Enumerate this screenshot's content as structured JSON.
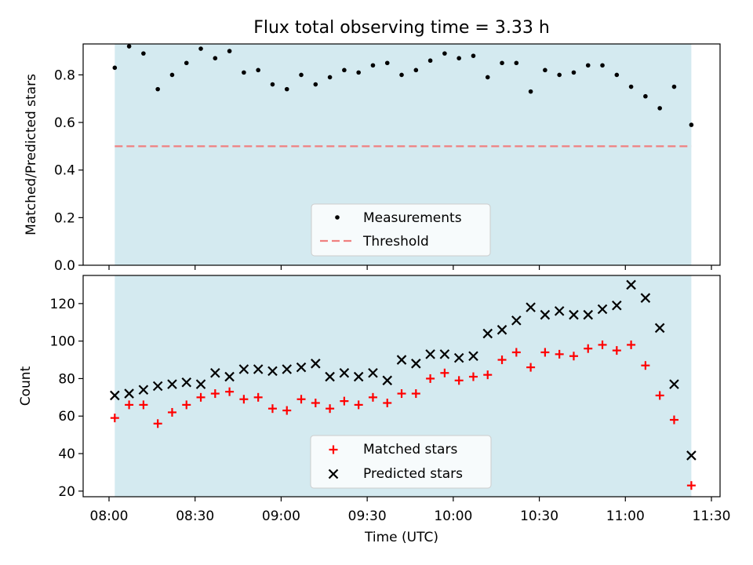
{
  "figure_title": "Flux total observing time = 3.33 h",
  "colors": {
    "shade": "#d4eaf0",
    "threshold": "#f08080",
    "matched": "#ff0000",
    "predicted": "#000000",
    "measurement": "#000000"
  },
  "chart_data": [
    {
      "type": "scatter",
      "title": "Flux total observing time = 3.33 h",
      "xlabel": "",
      "ylabel": "Matched/Predicted stars",
      "ylim": [
        0,
        0.93
      ],
      "yticks": [
        0.0,
        0.2,
        0.4,
        0.6,
        0.8
      ],
      "ytick_labels": [
        "0.0",
        "0.2",
        "0.4",
        "0.6",
        "0.8"
      ],
      "legend_position": "lower center",
      "shaded_time_span": [
        "08:02",
        "11:23"
      ],
      "series": [
        {
          "name": "Measurements",
          "marker": "dot",
          "x": [
            "08:02",
            "08:07",
            "08:12",
            "08:17",
            "08:22",
            "08:27",
            "08:32",
            "08:37",
            "08:42",
            "08:47",
            "08:52",
            "08:57",
            "09:02",
            "09:07",
            "09:12",
            "09:17",
            "09:22",
            "09:27",
            "09:32",
            "09:37",
            "09:42",
            "09:47",
            "09:52",
            "09:57",
            "10:02",
            "10:07",
            "10:12",
            "10:17",
            "10:22",
            "10:27",
            "10:32",
            "10:37",
            "10:42",
            "10:47",
            "10:52",
            "10:57",
            "11:02",
            "11:07",
            "11:12",
            "11:17",
            "11:23"
          ],
          "y": [
            0.83,
            0.92,
            0.89,
            0.74,
            0.8,
            0.85,
            0.91,
            0.87,
            0.9,
            0.81,
            0.82,
            0.76,
            0.74,
            0.8,
            0.76,
            0.79,
            0.82,
            0.81,
            0.84,
            0.85,
            0.8,
            0.82,
            0.86,
            0.89,
            0.87,
            0.88,
            0.79,
            0.85,
            0.85,
            0.73,
            0.82,
            0.8,
            0.81,
            0.84,
            0.84,
            0.8,
            0.75,
            0.71,
            0.66,
            0.75,
            0.59
          ]
        },
        {
          "name": "Threshold",
          "marker": "dashed-line",
          "x": [
            "08:02",
            "11:23"
          ],
          "y": [
            0.5,
            0.5
          ]
        }
      ]
    },
    {
      "type": "scatter",
      "title": "",
      "xlabel": "Time (UTC)",
      "ylabel": "Count",
      "ylim": [
        17,
        135
      ],
      "xlim": [
        "08:00",
        "11:30"
      ],
      "xticks": [
        "08:00",
        "08:30",
        "09:00",
        "09:30",
        "10:00",
        "10:30",
        "11:00",
        "11:30"
      ],
      "yticks": [
        20,
        40,
        60,
        80,
        100,
        120
      ],
      "ytick_labels": [
        "20",
        "40",
        "60",
        "80",
        "100",
        "120"
      ],
      "legend_position": "lower center",
      "shaded_time_span": [
        "08:02",
        "11:23"
      ],
      "series": [
        {
          "name": "Matched stars",
          "marker": "plus",
          "x": [
            "08:02",
            "08:07",
            "08:12",
            "08:17",
            "08:22",
            "08:27",
            "08:32",
            "08:37",
            "08:42",
            "08:47",
            "08:52",
            "08:57",
            "09:02",
            "09:07",
            "09:12",
            "09:17",
            "09:22",
            "09:27",
            "09:32",
            "09:37",
            "09:42",
            "09:47",
            "09:52",
            "09:57",
            "10:02",
            "10:07",
            "10:12",
            "10:17",
            "10:22",
            "10:27",
            "10:32",
            "10:37",
            "10:42",
            "10:47",
            "10:52",
            "10:57",
            "11:02",
            "11:07",
            "11:12",
            "11:17",
            "11:23"
          ],
          "y": [
            59,
            66,
            66,
            56,
            62,
            66,
            70,
            72,
            73,
            69,
            70,
            64,
            63,
            69,
            67,
            64,
            68,
            66,
            70,
            67,
            72,
            72,
            80,
            83,
            79,
            81,
            82,
            90,
            94,
            86,
            94,
            93,
            92,
            96,
            98,
            95,
            98,
            87,
            71,
            58,
            23
          ]
        },
        {
          "name": "Predicted stars",
          "marker": "x",
          "x": [
            "08:02",
            "08:07",
            "08:12",
            "08:17",
            "08:22",
            "08:27",
            "08:32",
            "08:37",
            "08:42",
            "08:47",
            "08:52",
            "08:57",
            "09:02",
            "09:07",
            "09:12",
            "09:17",
            "09:22",
            "09:27",
            "09:32",
            "09:37",
            "09:42",
            "09:47",
            "09:52",
            "09:57",
            "10:02",
            "10:07",
            "10:12",
            "10:17",
            "10:22",
            "10:27",
            "10:32",
            "10:37",
            "10:42",
            "10:47",
            "10:52",
            "10:57",
            "11:02",
            "11:07",
            "11:12",
            "11:17",
            "11:23"
          ],
          "y": [
            71,
            72,
            74,
            76,
            77,
            78,
            77,
            83,
            81,
            85,
            85,
            84,
            85,
            86,
            88,
            81,
            83,
            81,
            83,
            79,
            90,
            88,
            93,
            93,
            91,
            92,
            104,
            106,
            111,
            118,
            114,
            116,
            114,
            114,
            117,
            119,
            130,
            123,
            107,
            77,
            39
          ]
        }
      ]
    }
  ]
}
